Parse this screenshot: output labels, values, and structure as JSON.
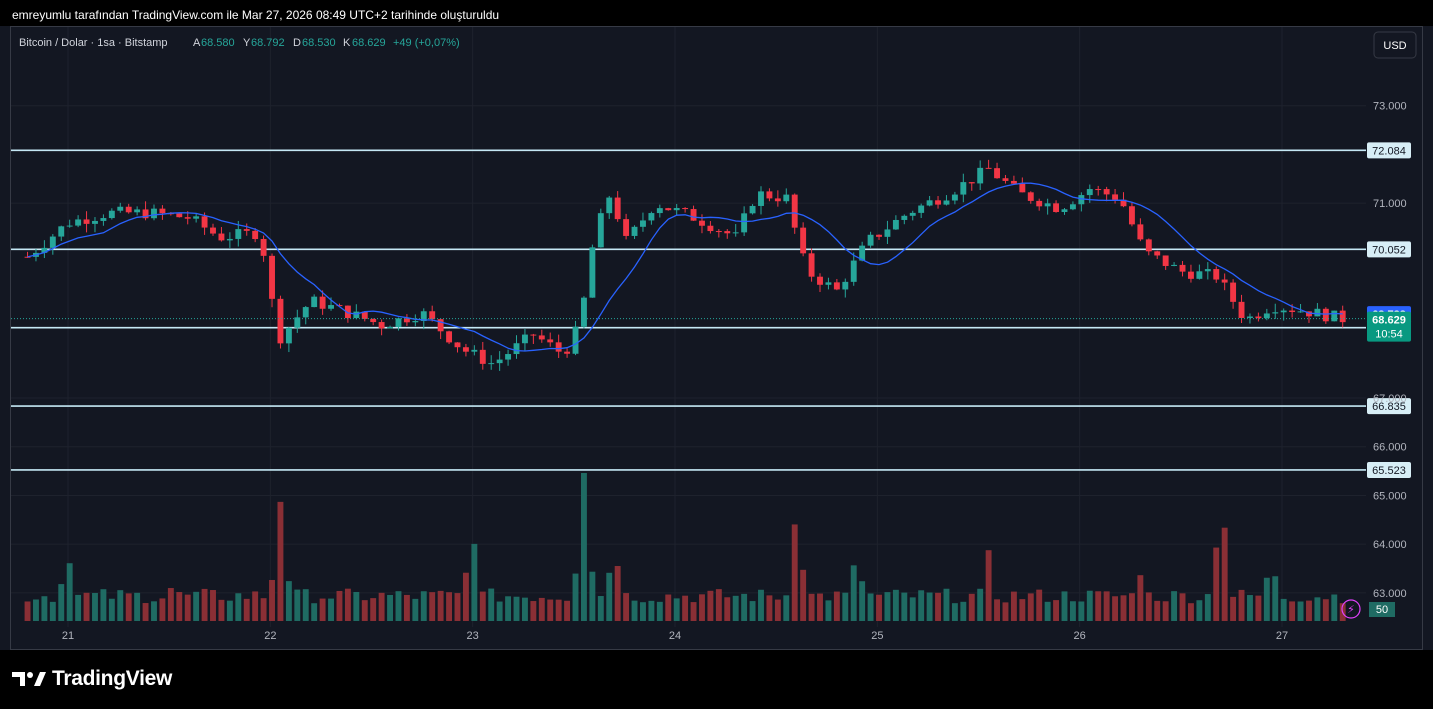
{
  "header": {
    "attribution": "emreyumlu tarafından TradingView.com ile Mar 27, 2026 08:49 UTC+2 tarihinde oluşturuldu"
  },
  "legend": {
    "symbol": "Bitcoin / Dolar · 1sa · Bitstamp",
    "open_label": "A",
    "open_value": "68.580",
    "high_label": "Y",
    "high_value": "68.792",
    "low_label": "D",
    "low_value": "68.530",
    "close_label": "K",
    "close_value": "68.629",
    "change": "+49 (+0,07%)"
  },
  "currency_button": "USD",
  "brand": "TradingView",
  "colors": {
    "up": "#26a69a",
    "down": "#f23645",
    "up_volume": "#1f6b63",
    "down_volume": "#8a2f35",
    "ma_line": "#2962ff",
    "level_line": "#c5e8f5",
    "last_price_badge": "#089981",
    "ma_badge": "#2962ff",
    "background": "#131722"
  },
  "chart_data": {
    "type": "candlestick",
    "title": "Bitcoin / Dolar · 1sa · Bitstamp",
    "ylim": [
      62300,
      74000
    ],
    "y_ticks": [
      "63.000",
      "64.000",
      "65.000",
      "66.000",
      "67.000",
      "71.000",
      "73.000"
    ],
    "x_ticks": [
      "21",
      "22",
      "23",
      "24",
      "25",
      "26",
      "27"
    ],
    "grid": true,
    "price_series": [
      {
        "day": 20.8,
        "price": 69900
      },
      {
        "day": 21.0,
        "price": 70600
      },
      {
        "day": 21.2,
        "price": 70800
      },
      {
        "day": 21.4,
        "price": 70800
      },
      {
        "day": 21.6,
        "price": 70700
      },
      {
        "day": 21.75,
        "price": 70300
      },
      {
        "day": 21.95,
        "price": 70400
      },
      {
        "day": 22.04,
        "price": 68200
      },
      {
        "day": 22.2,
        "price": 69000
      },
      {
        "day": 22.35,
        "price": 68800
      },
      {
        "day": 22.55,
        "price": 68500
      },
      {
        "day": 22.75,
        "price": 68750
      },
      {
        "day": 22.95,
        "price": 68000
      },
      {
        "day": 23.1,
        "price": 67700
      },
      {
        "day": 23.3,
        "price": 68300
      },
      {
        "day": 23.45,
        "price": 67900
      },
      {
        "day": 23.53,
        "price": 68500
      },
      {
        "day": 23.6,
        "price": 70300
      },
      {
        "day": 23.68,
        "price": 71200
      },
      {
        "day": 23.76,
        "price": 70200
      },
      {
        "day": 23.9,
        "price": 71000
      },
      {
        "day": 24.1,
        "price": 70700
      },
      {
        "day": 24.3,
        "price": 70300
      },
      {
        "day": 24.4,
        "price": 71200
      },
      {
        "day": 24.55,
        "price": 71100
      },
      {
        "day": 24.65,
        "price": 69600
      },
      {
        "day": 24.8,
        "price": 69200
      },
      {
        "day": 24.95,
        "price": 70200
      },
      {
        "day": 25.15,
        "price": 70800
      },
      {
        "day": 25.35,
        "price": 71200
      },
      {
        "day": 25.55,
        "price": 71700
      },
      {
        "day": 25.7,
        "price": 71200
      },
      {
        "day": 25.9,
        "price": 70900
      },
      {
        "day": 26.05,
        "price": 71300
      },
      {
        "day": 26.2,
        "price": 71100
      },
      {
        "day": 26.32,
        "price": 70000
      },
      {
        "day": 26.5,
        "price": 69600
      },
      {
        "day": 26.68,
        "price": 69500
      },
      {
        "day": 26.82,
        "price": 68600
      },
      {
        "day": 26.95,
        "price": 68900
      },
      {
        "day": 27.1,
        "price": 68800
      },
      {
        "day": 27.3,
        "price": 68629
      }
    ],
    "horizontal_levels": [
      {
        "label": "72.084",
        "price": 72084
      },
      {
        "label": "70.052",
        "price": 70052
      },
      {
        "label": "68.444",
        "price": 68444
      },
      {
        "label": "66.835",
        "price": 66835
      },
      {
        "label": "65.523",
        "price": 65523
      }
    ],
    "moving_average_label": "68.723",
    "moving_average_price": 68723,
    "last_price_label": "68.629",
    "last_price": 68629,
    "countdown": "10:54",
    "volume_label": "50",
    "volume_bars": [
      {
        "day": 21.0,
        "volume": 0.45,
        "dir": "up"
      },
      {
        "day": 21.5,
        "volume": 0.2,
        "dir": "down"
      },
      {
        "day": 22.05,
        "volume": 0.78,
        "dir": "up"
      },
      {
        "day": 23.0,
        "volume": 0.6,
        "dir": "down"
      },
      {
        "day": 23.55,
        "volume": 1.0,
        "dir": "up"
      },
      {
        "day": 23.7,
        "volume": 0.5,
        "dir": "down"
      },
      {
        "day": 24.6,
        "volume": 0.75,
        "dir": "down"
      },
      {
        "day": 24.9,
        "volume": 0.4,
        "dir": "up"
      },
      {
        "day": 25.55,
        "volume": 0.38,
        "dir": "up"
      },
      {
        "day": 26.3,
        "volume": 0.3,
        "dir": "down"
      },
      {
        "day": 26.7,
        "volume": 0.83,
        "dir": "down"
      },
      {
        "day": 26.95,
        "volume": 0.37,
        "dir": "up"
      }
    ]
  }
}
